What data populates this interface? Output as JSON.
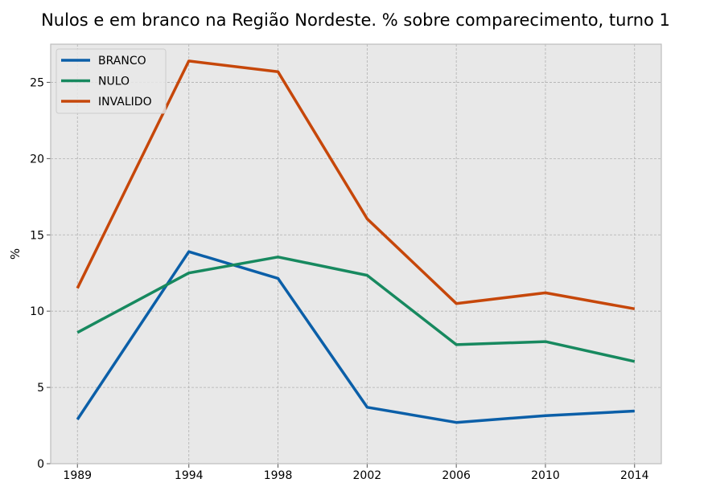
{
  "chart_data": {
    "type": "line",
    "title": "Nulos e em branco na Região Nordeste. % sobre comparecimento, turno 1",
    "xlabel": "",
    "ylabel": "%",
    "x": [
      1989,
      1994,
      1998,
      2002,
      2006,
      2010,
      2014
    ],
    "xlim": [
      1987.8,
      2015.2
    ],
    "ylim": [
      0,
      27.5
    ],
    "yticks": [
      0,
      5,
      10,
      15,
      20,
      25
    ],
    "grid": true,
    "legend_position": "top-left",
    "series": [
      {
        "name": "BRANCO",
        "color": "#0b5fa8",
        "values": [
          2.9,
          13.9,
          12.15,
          3.7,
          2.7,
          3.15,
          3.45
        ]
      },
      {
        "name": "NULO",
        "color": "#17895f",
        "values": [
          8.6,
          12.5,
          13.55,
          12.35,
          7.8,
          8.0,
          6.7
        ]
      },
      {
        "name": "INVALIDO",
        "color": "#c6470a",
        "values": [
          11.5,
          26.4,
          25.7,
          16.05,
          10.5,
          11.2,
          10.15
        ]
      }
    ]
  },
  "colors": {
    "plot_background": "#e8e8e8",
    "grid": "#b0b0b0",
    "frame": "#bcbcbc"
  }
}
